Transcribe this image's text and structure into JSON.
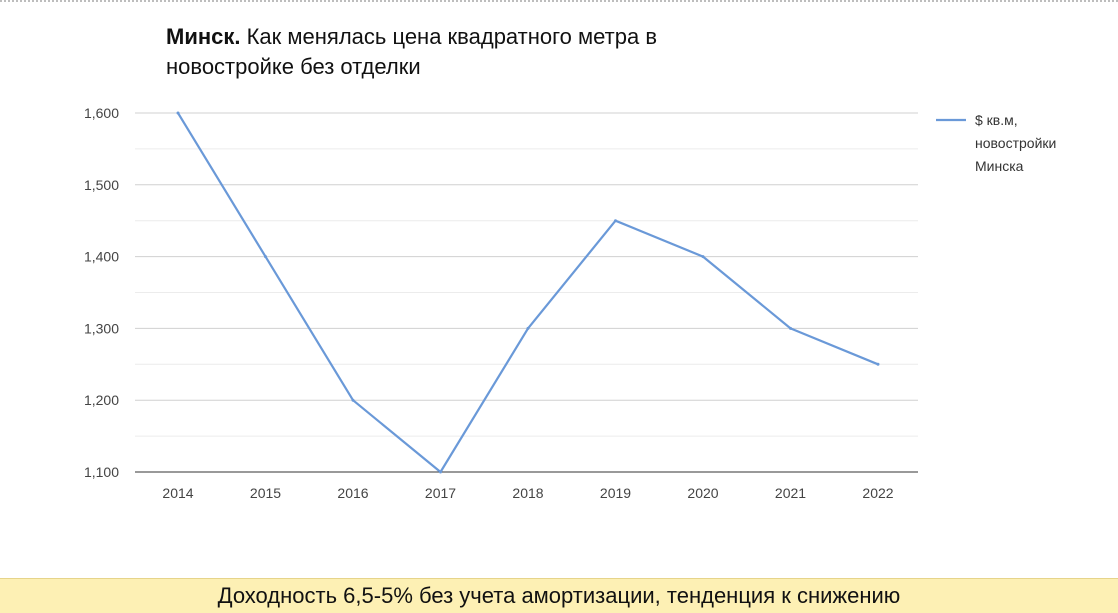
{
  "chart_data": {
    "type": "line",
    "title_bold": "Минск.",
    "title_rest": " Как менялась цена квадратного метра в новостройке без отделки",
    "categories": [
      "2014",
      "2015",
      "2016",
      "2017",
      "2018",
      "2019",
      "2020",
      "2021",
      "2022"
    ],
    "series": [
      {
        "name_lines": [
          "$ кв.м,",
          "новостройки",
          "Минска"
        ],
        "color": "#6a99d8",
        "values": [
          1600,
          1400,
          1200,
          1100,
          1300,
          1450,
          1400,
          1300,
          1250
        ]
      }
    ],
    "yticks": [
      1100,
      1200,
      1300,
      1400,
      1500,
      1600
    ],
    "ytick_labels": [
      "1,100",
      "1,200",
      "1,300",
      "1,400",
      "1,500",
      "1,600"
    ],
    "ylim": [
      1100,
      1600
    ],
    "grid": true,
    "legend_position": "right"
  },
  "caption": "Доходность 6,5-5% без учета амортизации, тенденция к снижению"
}
